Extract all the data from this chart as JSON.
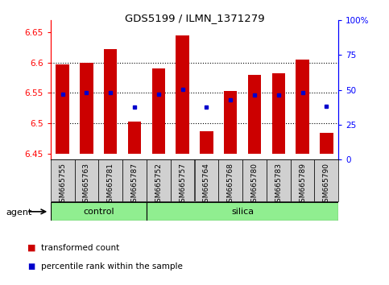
{
  "title": "GDS5199 / ILMN_1371279",
  "samples": [
    "GSM665755",
    "GSM665763",
    "GSM665781",
    "GSM665787",
    "GSM665752",
    "GSM665757",
    "GSM665764",
    "GSM665768",
    "GSM665780",
    "GSM665783",
    "GSM665789",
    "GSM665790"
  ],
  "groups": [
    "control",
    "control",
    "control",
    "control",
    "silica",
    "silica",
    "silica",
    "silica",
    "silica",
    "silica",
    "silica",
    "silica"
  ],
  "bar_tops": [
    6.597,
    6.6,
    6.622,
    6.503,
    6.59,
    6.645,
    6.487,
    6.553,
    6.58,
    6.582,
    6.605,
    6.484
  ],
  "bar_bottom": 6.45,
  "percentile_values": [
    6.548,
    6.55,
    6.551,
    6.527,
    6.548,
    6.556,
    6.527,
    6.538,
    6.546,
    6.546,
    6.55,
    6.528
  ],
  "ylim_left": [
    6.44,
    6.67
  ],
  "ylim_right": [
    0,
    100
  ],
  "yticks_left": [
    6.45,
    6.5,
    6.55,
    6.6,
    6.65
  ],
  "yticks_right": [
    0,
    25,
    50,
    75,
    100
  ],
  "bar_color": "#cc0000",
  "dot_color": "#0000cc",
  "group_color": "#90ee90",
  "sample_box_color": "#d0d0d0",
  "grid_dotted_at": [
    6.5,
    6.55,
    6.6
  ],
  "agent_label": "agent",
  "legend1": "transformed count",
  "legend2": "percentile rank within the sample",
  "bar_width": 0.55,
  "n_control": 4,
  "n_silica": 8
}
